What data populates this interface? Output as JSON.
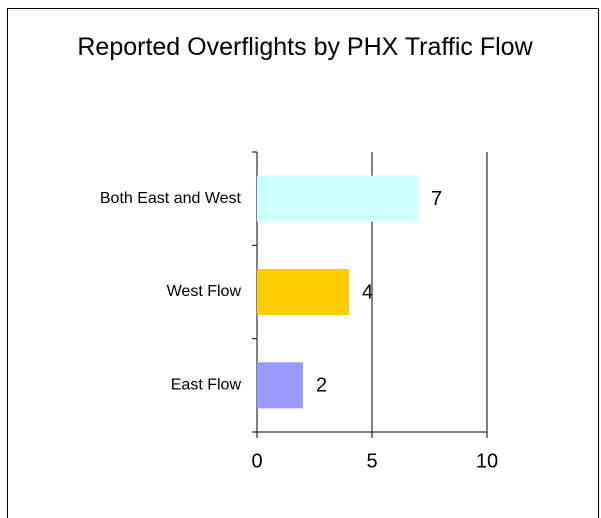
{
  "chart_data": {
    "type": "hbar",
    "title": "Reported Overflights by PHX Traffic Flow",
    "categories": [
      "Both East and West",
      "West Flow",
      "East Flow"
    ],
    "values": [
      7,
      4,
      2
    ],
    "colors": [
      "#ccffff",
      "#ffcc00",
      "#9999ff"
    ],
    "xlim": [
      0,
      10
    ],
    "xticks": [
      0,
      5,
      10
    ],
    "grid": true
  }
}
